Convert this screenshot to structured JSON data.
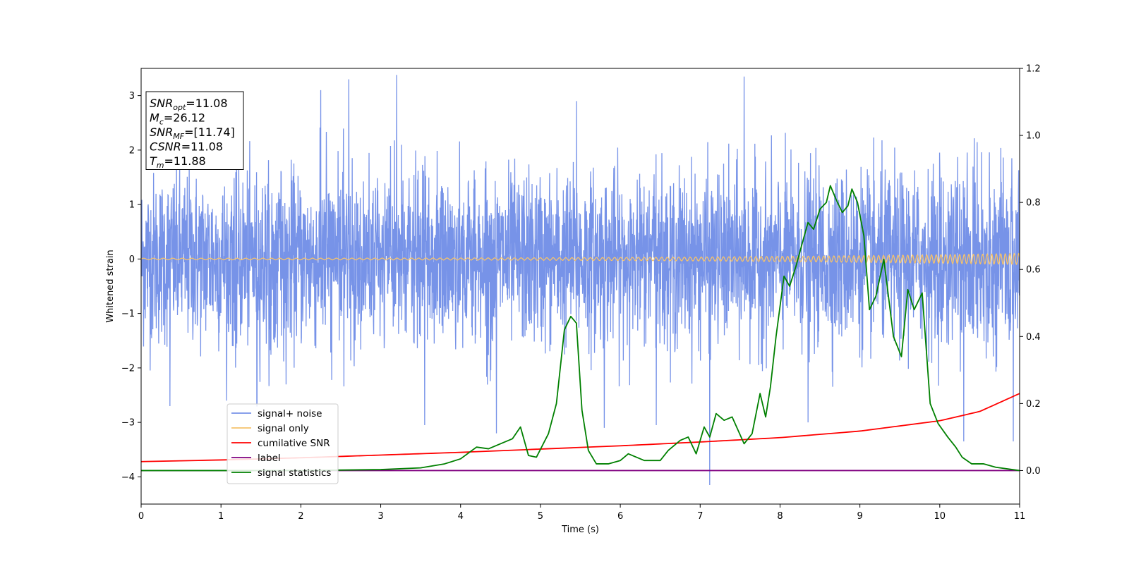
{
  "chart_data": {
    "type": "line",
    "xlabel": "Time (s)",
    "ylabel": "Whitened strain",
    "xlim": [
      0,
      11
    ],
    "ylim_left": [
      -4.5,
      3.5
    ],
    "ylim_right": [
      -0.1,
      1.2
    ],
    "x_ticks": [
      0,
      1,
      2,
      3,
      4,
      5,
      6,
      7,
      8,
      9,
      10,
      11
    ],
    "y_left_ticks": [
      -4,
      -3,
      -2,
      -1,
      0,
      1,
      2,
      3
    ],
    "y_right_ticks": [
      0.0,
      0.2,
      0.4,
      0.6,
      0.8,
      1.0,
      1.2
    ],
    "legend_position": "lower-left",
    "info_box": {
      "position": "top-left",
      "lines": [
        {
          "main": "SNR",
          "sub": "opt",
          "value": "=11.08"
        },
        {
          "main": "M",
          "sub": "c",
          "value": "=26.12"
        },
        {
          "main": "SNR",
          "sub": "MF",
          "value": "=[11.74]"
        },
        {
          "main": "CSNR",
          "sub": "",
          "value": "=11.08"
        },
        {
          "main": "T",
          "sub": "m",
          "value": "=11.88"
        }
      ]
    },
    "series": [
      {
        "name": "signal+ noise",
        "color": "#7793e8",
        "axis": "left",
        "style": "noise",
        "amplitude_envelope": {
          "typical": [
            -2.0,
            2.2
          ],
          "extremes_max": 3.38,
          "extremes_min": -4.15
        },
        "peaks": [
          [
            0.36,
            -2.7
          ],
          [
            1.07,
            -2.6
          ],
          [
            1.45,
            -2.7
          ],
          [
            2.25,
            3.1
          ],
          [
            2.6,
            3.3
          ],
          [
            3.2,
            3.38
          ],
          [
            3.55,
            -3.05
          ],
          [
            4.45,
            -3.2
          ],
          [
            5.45,
            2.9
          ],
          [
            5.8,
            -3.1
          ],
          [
            6.45,
            -3.05
          ],
          [
            7.12,
            -4.15
          ],
          [
            7.55,
            3.35
          ],
          [
            8.35,
            -3.0
          ],
          [
            10.3,
            -3.35
          ],
          [
            10.92,
            -3.35
          ]
        ]
      },
      {
        "name": "signal only",
        "color": "#f5c26b",
        "axis": "left",
        "style": "chirp",
        "amplitude_start": 0.015,
        "amplitude_end": 0.1
      },
      {
        "name": "cumilative SNR",
        "color": "#ff0000",
        "axis": "left",
        "x": [
          0,
          1,
          2,
          3,
          4,
          5,
          6,
          7,
          8,
          9,
          10,
          10.5,
          11
        ],
        "y": [
          -3.72,
          -3.69,
          -3.65,
          -3.6,
          -3.55,
          -3.49,
          -3.43,
          -3.36,
          -3.28,
          -3.16,
          -2.97,
          -2.8,
          -2.47
        ]
      },
      {
        "name": "label",
        "color": "#800080",
        "axis": "right",
        "x": [
          0,
          11
        ],
        "y": [
          0.0,
          0.0
        ]
      },
      {
        "name": "signal statistics",
        "color": "#008000",
        "axis": "right",
        "x": [
          0,
          1,
          2,
          3,
          3.5,
          3.8,
          4.0,
          4.2,
          4.35,
          4.5,
          4.65,
          4.75,
          4.85,
          4.95,
          5.1,
          5.2,
          5.3,
          5.38,
          5.45,
          5.52,
          5.6,
          5.7,
          5.85,
          6.0,
          6.1,
          6.2,
          6.3,
          6.5,
          6.6,
          6.75,
          6.85,
          6.95,
          7.05,
          7.12,
          7.2,
          7.3,
          7.4,
          7.55,
          7.65,
          7.75,
          7.82,
          7.88,
          7.95,
          8.05,
          8.12,
          8.2,
          8.28,
          8.35,
          8.42,
          8.5,
          8.58,
          8.63,
          8.7,
          8.78,
          8.85,
          8.9,
          8.97,
          9.05,
          9.12,
          9.2,
          9.3,
          9.42,
          9.52,
          9.6,
          9.68,
          9.78,
          9.88,
          9.98,
          10.1,
          10.2,
          10.28,
          10.4,
          10.55,
          10.7,
          11.0
        ],
        "y": [
          0.0,
          0.0,
          0.0,
          0.003,
          0.008,
          0.02,
          0.035,
          0.07,
          0.065,
          0.08,
          0.095,
          0.13,
          0.045,
          0.04,
          0.11,
          0.2,
          0.42,
          0.46,
          0.44,
          0.18,
          0.06,
          0.02,
          0.02,
          0.03,
          0.05,
          0.04,
          0.03,
          0.03,
          0.06,
          0.09,
          0.1,
          0.05,
          0.13,
          0.1,
          0.17,
          0.15,
          0.16,
          0.08,
          0.11,
          0.23,
          0.16,
          0.25,
          0.4,
          0.58,
          0.55,
          0.61,
          0.68,
          0.74,
          0.72,
          0.78,
          0.8,
          0.85,
          0.81,
          0.77,
          0.79,
          0.84,
          0.8,
          0.7,
          0.48,
          0.52,
          0.63,
          0.4,
          0.34,
          0.54,
          0.48,
          0.53,
          0.2,
          0.14,
          0.1,
          0.07,
          0.04,
          0.02,
          0.02,
          0.01,
          0.0
        ]
      }
    ]
  }
}
